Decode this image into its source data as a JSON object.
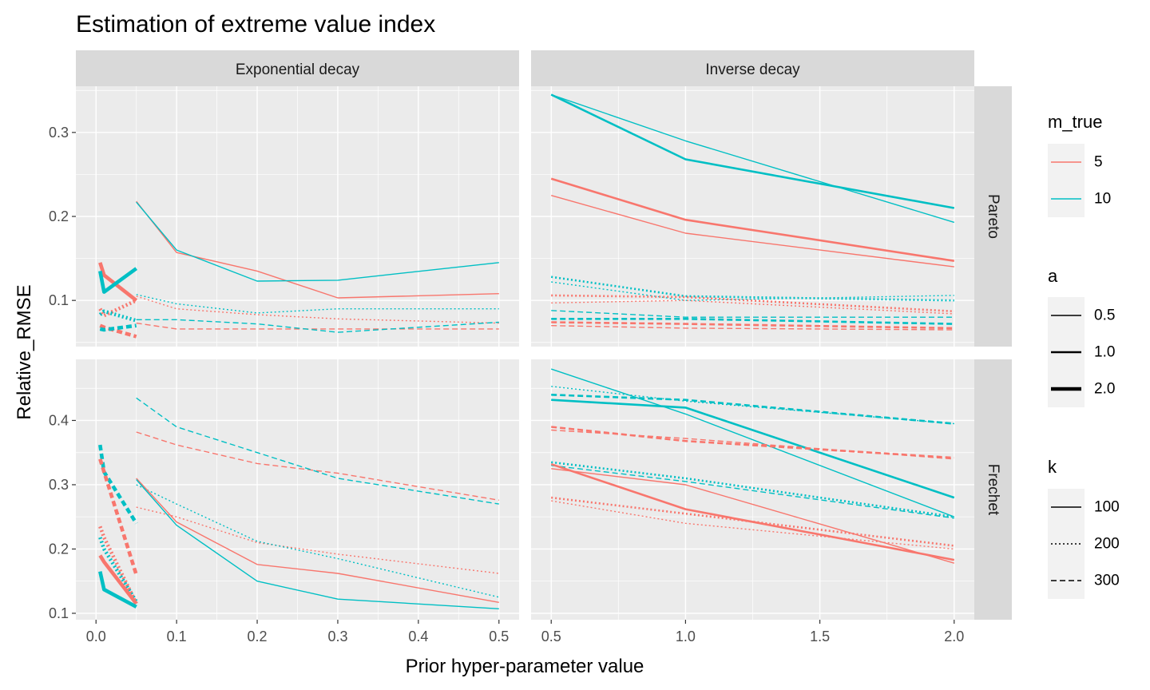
{
  "chart_data": {
    "type": "line",
    "title": "Estimation of extreme value index",
    "xlabel": "Prior hyper-parameter value",
    "ylabel": "Relative_RMSE",
    "facet_columns": [
      "Exponential decay",
      "Inverse decay"
    ],
    "facet_rows": [
      "Pareto",
      "Frechet"
    ],
    "x_axes": {
      "Exponential decay": {
        "range": [
          -0.025,
          0.525
        ],
        "breaks": [
          0.0,
          0.1,
          0.2,
          0.3,
          0.4,
          0.5
        ],
        "labels": [
          "0.0",
          "0.1",
          "0.2",
          "0.3",
          "0.4",
          "0.5"
        ]
      },
      "Inverse decay": {
        "range": [
          0.425,
          2.075
        ],
        "breaks": [
          0.5,
          1.0,
          1.5,
          2.0
        ],
        "labels": [
          "0.5",
          "1.0",
          "1.5",
          "2.0"
        ]
      }
    },
    "y_axes": {
      "Pareto": {
        "range": [
          0.045,
          0.355
        ],
        "breaks": [
          0.1,
          0.2,
          0.3
        ],
        "labels": [
          "0.1",
          "0.2",
          "0.3"
        ]
      },
      "Frechet": {
        "range": [
          0.09,
          0.495
        ],
        "breaks": [
          0.1,
          0.2,
          0.3,
          0.4
        ],
        "labels": [
          "0.1",
          "0.2",
          "0.3",
          "0.4"
        ]
      }
    },
    "grid": true,
    "legend_position": "right",
    "legends": [
      {
        "title": "m_true",
        "aesthetic": "color",
        "items": [
          {
            "label": "5",
            "color": "#F8766D"
          },
          {
            "label": "10",
            "color": "#00BFC4"
          }
        ]
      },
      {
        "title": "a",
        "aesthetic": "linewidth",
        "items": [
          {
            "label": "0.5"
          },
          {
            "label": "1.0"
          },
          {
            "label": "2.0"
          }
        ]
      },
      {
        "title": "k",
        "aesthetic": "linetype",
        "items": [
          {
            "label": "100",
            "linetype": "solid"
          },
          {
            "label": "200",
            "linetype": "dotted"
          },
          {
            "label": "300",
            "linetype": "dashed"
          }
        ]
      }
    ],
    "series": [
      {
        "facet_col": "Exponential decay",
        "facet_row": "Pareto",
        "m_true": "5",
        "a": "0.5",
        "k": "100",
        "x": [
          0.05,
          0.1,
          0.2,
          0.3,
          0.5
        ],
        "y": [
          0.218,
          0.157,
          0.135,
          0.103,
          0.108
        ]
      },
      {
        "facet_col": "Exponential decay",
        "facet_row": "Pareto",
        "m_true": "10",
        "a": "0.5",
        "k": "100",
        "x": [
          0.05,
          0.1,
          0.2,
          0.3,
          0.5
        ],
        "y": [
          0.217,
          0.16,
          0.123,
          0.124,
          0.145
        ]
      },
      {
        "facet_col": "Exponential decay",
        "facet_row": "Pareto",
        "m_true": "5",
        "a": "0.5",
        "k": "200",
        "x": [
          0.05,
          0.1,
          0.2,
          0.3,
          0.5
        ],
        "y": [
          0.105,
          0.09,
          0.083,
          0.078,
          0.073
        ]
      },
      {
        "facet_col": "Exponential decay",
        "facet_row": "Pareto",
        "m_true": "10",
        "a": "0.5",
        "k": "200",
        "x": [
          0.05,
          0.1,
          0.2,
          0.3,
          0.5
        ],
        "y": [
          0.107,
          0.096,
          0.085,
          0.09,
          0.09
        ]
      },
      {
        "facet_col": "Exponential decay",
        "facet_row": "Pareto",
        "m_true": "5",
        "a": "0.5",
        "k": "300",
        "x": [
          0.05,
          0.1,
          0.2,
          0.3,
          0.5
        ],
        "y": [
          0.073,
          0.066,
          0.066,
          0.066,
          0.066
        ]
      },
      {
        "facet_col": "Exponential decay",
        "facet_row": "Pareto",
        "m_true": "10",
        "a": "0.5",
        "k": "300",
        "x": [
          0.05,
          0.1,
          0.2,
          0.3,
          0.5
        ],
        "y": [
          0.077,
          0.077,
          0.072,
          0.062,
          0.074
        ]
      },
      {
        "facet_col": "Exponential decay",
        "facet_row": "Pareto",
        "m_true": "5",
        "a": "2.0",
        "k": "100",
        "x": [
          0.005,
          0.01,
          0.05
        ],
        "y": [
          0.145,
          0.13,
          0.1
        ]
      },
      {
        "facet_col": "Exponential decay",
        "facet_row": "Pareto",
        "m_true": "10",
        "a": "2.0",
        "k": "100",
        "x": [
          0.005,
          0.01,
          0.05
        ],
        "y": [
          0.135,
          0.11,
          0.138
        ]
      },
      {
        "facet_col": "Exponential decay",
        "facet_row": "Pareto",
        "m_true": "5",
        "a": "2.0",
        "k": "200",
        "x": [
          0.005,
          0.01,
          0.05
        ],
        "y": [
          0.09,
          0.082,
          0.1
        ]
      },
      {
        "facet_col": "Exponential decay",
        "facet_row": "Pareto",
        "m_true": "10",
        "a": "2.0",
        "k": "200",
        "x": [
          0.005,
          0.01,
          0.05
        ],
        "y": [
          0.083,
          0.087,
          0.076
        ]
      },
      {
        "facet_col": "Exponential decay",
        "facet_row": "Pareto",
        "m_true": "5",
        "a": "2.0",
        "k": "300",
        "x": [
          0.005,
          0.01,
          0.05
        ],
        "y": [
          0.07,
          0.068,
          0.057
        ]
      },
      {
        "facet_col": "Exponential decay",
        "facet_row": "Pareto",
        "m_true": "10",
        "a": "2.0",
        "k": "300",
        "x": [
          0.005,
          0.01,
          0.05
        ],
        "y": [
          0.066,
          0.065,
          0.07
        ]
      },
      {
        "facet_col": "Inverse decay",
        "facet_row": "Pareto",
        "m_true": "10",
        "a": "0.5",
        "k": "100",
        "x": [
          0.5,
          1.0,
          2.0
        ],
        "y": [
          0.345,
          0.29,
          0.193
        ]
      },
      {
        "facet_col": "Inverse decay",
        "facet_row": "Pareto",
        "m_true": "10",
        "a": "1.0",
        "k": "100",
        "x": [
          0.5,
          1.0,
          2.0
        ],
        "y": [
          0.345,
          0.268,
          0.21
        ]
      },
      {
        "facet_col": "Inverse decay",
        "facet_row": "Pareto",
        "m_true": "5",
        "a": "1.0",
        "k": "100",
        "x": [
          0.5,
          1.0,
          2.0
        ],
        "y": [
          0.245,
          0.196,
          0.147
        ]
      },
      {
        "facet_col": "Inverse decay",
        "facet_row": "Pareto",
        "m_true": "5",
        "a": "0.5",
        "k": "100",
        "x": [
          0.5,
          1.0,
          2.0
        ],
        "y": [
          0.225,
          0.18,
          0.14
        ]
      },
      {
        "facet_col": "Inverse decay",
        "facet_row": "Pareto",
        "m_true": "10",
        "a": "1.0",
        "k": "200",
        "x": [
          0.5,
          1.0,
          2.0
        ],
        "y": [
          0.128,
          0.105,
          0.1
        ]
      },
      {
        "facet_col": "Inverse decay",
        "facet_row": "Pareto",
        "m_true": "10",
        "a": "0.5",
        "k": "200",
        "x": [
          0.5,
          1.0,
          2.0
        ],
        "y": [
          0.122,
          0.1,
          0.106
        ]
      },
      {
        "facet_col": "Inverse decay",
        "facet_row": "Pareto",
        "m_true": "5",
        "a": "1.0",
        "k": "200",
        "x": [
          0.5,
          1.0,
          2.0
        ],
        "y": [
          0.106,
          0.104,
          0.087
        ]
      },
      {
        "facet_col": "Inverse decay",
        "facet_row": "Pareto",
        "m_true": "5",
        "a": "0.5",
        "k": "200",
        "x": [
          0.5,
          1.0,
          2.0
        ],
        "y": [
          0.097,
          0.1,
          0.084
        ]
      },
      {
        "facet_col": "Inverse decay",
        "facet_row": "Pareto",
        "m_true": "10",
        "a": "0.5",
        "k": "300",
        "x": [
          0.5,
          1.0,
          2.0
        ],
        "y": [
          0.088,
          0.08,
          0.08
        ]
      },
      {
        "facet_col": "Inverse decay",
        "facet_row": "Pareto",
        "m_true": "10",
        "a": "1.0",
        "k": "300",
        "x": [
          0.5,
          1.0,
          2.0
        ],
        "y": [
          0.078,
          0.078,
          0.072
        ]
      },
      {
        "facet_col": "Inverse decay",
        "facet_row": "Pareto",
        "m_true": "5",
        "a": "1.0",
        "k": "300",
        "x": [
          0.5,
          1.0,
          2.0
        ],
        "y": [
          0.074,
          0.072,
          0.067
        ]
      },
      {
        "facet_col": "Inverse decay",
        "facet_row": "Pareto",
        "m_true": "5",
        "a": "0.5",
        "k": "300",
        "x": [
          0.5,
          1.0,
          2.0
        ],
        "y": [
          0.07,
          0.067,
          0.065
        ]
      },
      {
        "facet_col": "Exponential decay",
        "facet_row": "Frechet",
        "m_true": "5",
        "a": "0.5",
        "k": "300",
        "x": [
          0.05,
          0.1,
          0.2,
          0.3,
          0.5
        ],
        "y": [
          0.382,
          0.362,
          0.333,
          0.318,
          0.276
        ]
      },
      {
        "facet_col": "Exponential decay",
        "facet_row": "Frechet",
        "m_true": "10",
        "a": "0.5",
        "k": "300",
        "x": [
          0.05,
          0.1,
          0.2,
          0.3,
          0.5
        ],
        "y": [
          0.435,
          0.39,
          0.35,
          0.31,
          0.27
        ]
      },
      {
        "facet_col": "Exponential decay",
        "facet_row": "Frechet",
        "m_true": "5",
        "a": "0.5",
        "k": "200",
        "x": [
          0.05,
          0.1,
          0.2,
          0.3,
          0.5
        ],
        "y": [
          0.265,
          0.25,
          0.21,
          0.192,
          0.162
        ]
      },
      {
        "facet_col": "Exponential decay",
        "facet_row": "Frechet",
        "m_true": "10",
        "a": "0.5",
        "k": "200",
        "x": [
          0.05,
          0.1,
          0.2,
          0.3,
          0.5
        ],
        "y": [
          0.3,
          0.27,
          0.212,
          0.185,
          0.125
        ]
      },
      {
        "facet_col": "Exponential decay",
        "facet_row": "Frechet",
        "m_true": "5",
        "a": "0.5",
        "k": "100",
        "x": [
          0.05,
          0.1,
          0.2,
          0.3,
          0.5
        ],
        "y": [
          0.31,
          0.242,
          0.176,
          0.162,
          0.117
        ]
      },
      {
        "facet_col": "Exponential decay",
        "facet_row": "Frechet",
        "m_true": "10",
        "a": "0.5",
        "k": "100",
        "x": [
          0.05,
          0.1,
          0.2,
          0.3,
          0.5
        ],
        "y": [
          0.308,
          0.237,
          0.15,
          0.122,
          0.107
        ]
      },
      {
        "facet_col": "Exponential decay",
        "facet_row": "Frechet",
        "m_true": "10",
        "a": "2.0",
        "k": "300",
        "x": [
          0.005,
          0.01,
          0.05
        ],
        "y": [
          0.362,
          0.32,
          0.24
        ]
      },
      {
        "facet_col": "Exponential decay",
        "facet_row": "Frechet",
        "m_true": "5",
        "a": "2.0",
        "k": "300",
        "x": [
          0.005,
          0.01,
          0.05
        ],
        "y": [
          0.34,
          0.32,
          0.16
        ]
      },
      {
        "facet_col": "Exponential decay",
        "facet_row": "Frechet",
        "m_true": "5",
        "a": "2.0",
        "k": "200",
        "x": [
          0.005,
          0.01,
          0.05
        ],
        "y": [
          0.235,
          0.218,
          0.115
        ]
      },
      {
        "facet_col": "Exponential decay",
        "facet_row": "Frechet",
        "m_true": "10",
        "a": "2.0",
        "k": "200",
        "x": [
          0.005,
          0.01,
          0.05
        ],
        "y": [
          0.218,
          0.2,
          0.118
        ]
      },
      {
        "facet_col": "Exponential decay",
        "facet_row": "Frechet",
        "m_true": "5",
        "a": "2.0",
        "k": "100",
        "x": [
          0.005,
          0.01,
          0.05
        ],
        "y": [
          0.19,
          0.18,
          0.115
        ]
      },
      {
        "facet_col": "Exponential decay",
        "facet_row": "Frechet",
        "m_true": "10",
        "a": "2.0",
        "k": "100",
        "x": [
          0.005,
          0.01,
          0.05
        ],
        "y": [
          0.165,
          0.137,
          0.11
        ]
      },
      {
        "facet_col": "Inverse decay",
        "facet_row": "Frechet",
        "m_true": "10",
        "a": "0.5",
        "k": "100",
        "x": [
          0.5,
          1.0,
          2.0
        ],
        "y": [
          0.48,
          0.41,
          0.25
        ]
      },
      {
        "facet_col": "Inverse decay",
        "facet_row": "Frechet",
        "m_true": "10",
        "a": "1.0",
        "k": "100",
        "x": [
          0.5,
          1.0,
          2.0
        ],
        "y": [
          0.432,
          0.42,
          0.28
        ]
      },
      {
        "facet_col": "Inverse decay",
        "facet_row": "Frechet",
        "m_true": "10",
        "a": "0.5",
        "k": "200",
        "x": [
          0.5,
          1.0,
          2.0
        ],
        "y": [
          0.453,
          0.43,
          0.395
        ]
      },
      {
        "facet_col": "Inverse decay",
        "facet_row": "Frechet",
        "m_true": "10",
        "a": "1.0",
        "k": "300",
        "x": [
          0.5,
          1.0,
          2.0
        ],
        "y": [
          0.44,
          0.432,
          0.395
        ]
      },
      {
        "facet_col": "Inverse decay",
        "facet_row": "Frechet",
        "m_true": "5",
        "a": "1.0",
        "k": "300",
        "x": [
          0.5,
          1.0,
          2.0
        ],
        "y": [
          0.39,
          0.368,
          0.342
        ]
      },
      {
        "facet_col": "Inverse decay",
        "facet_row": "Frechet",
        "m_true": "5",
        "a": "0.5",
        "k": "300",
        "x": [
          0.5,
          1.0,
          2.0
        ],
        "y": [
          0.385,
          0.372,
          0.34
        ]
      },
      {
        "facet_col": "Inverse decay",
        "facet_row": "Frechet",
        "m_true": "10",
        "a": "1.0",
        "k": "200",
        "x": [
          0.5,
          1.0,
          2.0
        ],
        "y": [
          0.335,
          0.31,
          0.25
        ]
      },
      {
        "facet_col": "Inverse decay",
        "facet_row": "Frechet",
        "m_true": "10",
        "a": "0.5",
        "k": "300",
        "x": [
          0.5,
          1.0,
          2.0
        ],
        "y": [
          0.33,
          0.305,
          0.248
        ]
      },
      {
        "facet_col": "Inverse decay",
        "facet_row": "Frechet",
        "m_true": "5",
        "a": "0.5",
        "k": "100",
        "x": [
          0.5,
          1.0,
          2.0
        ],
        "y": [
          0.325,
          0.3,
          0.178
        ]
      },
      {
        "facet_col": "Inverse decay",
        "facet_row": "Frechet",
        "m_true": "5",
        "a": "1.0",
        "k": "100",
        "x": [
          0.5,
          1.0,
          2.0
        ],
        "y": [
          0.332,
          0.262,
          0.183
        ]
      },
      {
        "facet_col": "Inverse decay",
        "facet_row": "Frechet",
        "m_true": "5",
        "a": "1.0",
        "k": "200",
        "x": [
          0.5,
          1.0,
          2.0
        ],
        "y": [
          0.28,
          0.255,
          0.205
        ]
      },
      {
        "facet_col": "Inverse decay",
        "facet_row": "Frechet",
        "m_true": "5",
        "a": "0.5",
        "k": "200",
        "x": [
          0.5,
          1.0,
          2.0
        ],
        "y": [
          0.275,
          0.24,
          0.2
        ]
      }
    ]
  }
}
